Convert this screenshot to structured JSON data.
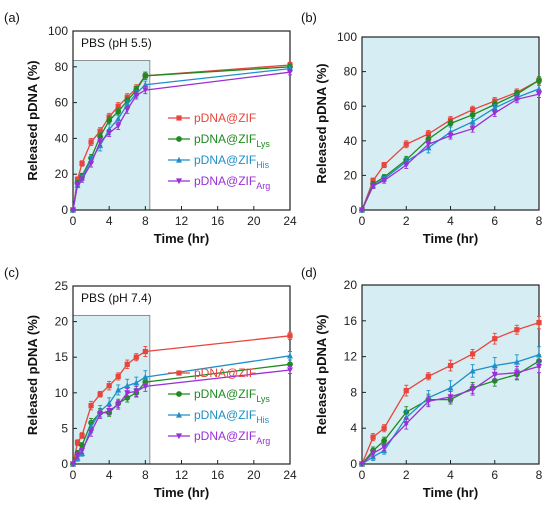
{
  "colors": {
    "ZIF": "#e8453c",
    "Lys": "#1f8a1f",
    "His": "#1f8fc8",
    "Arg": "#9a2fd6",
    "shade": "#d5edf3"
  },
  "chart_data": [
    {
      "id": "a",
      "panel_label": "(a)",
      "type": "line",
      "annotation": "PBS (pH 5.5)",
      "xlabel": "Time (hr)",
      "ylabel": "Released pDNA (%)",
      "xlim": [
        0,
        24
      ],
      "ylim": [
        0,
        100
      ],
      "xticks": [
        0,
        4,
        8,
        12,
        16,
        20,
        24
      ],
      "yticks": [
        0,
        20,
        40,
        60,
        80,
        100
      ],
      "shaded_x": [
        0,
        8.5
      ],
      "shade_full": false,
      "legend": "right",
      "series": [
        {
          "name": "pDNA@ZIF",
          "base": "pDNA@ZIF",
          "sub": "",
          "color_key": "ZIF",
          "marker": "square",
          "x": [
            0,
            0.5,
            1,
            2,
            3,
            4,
            5,
            6,
            7,
            8,
            24
          ],
          "y": [
            0,
            17,
            26,
            38,
            44,
            52,
            58,
            63,
            68,
            75,
            81
          ],
          "err": [
            0,
            1.5,
            1.5,
            2,
            2,
            2,
            2,
            2,
            2,
            2,
            1.5
          ]
        },
        {
          "name": "pDNA@ZIFLys",
          "base": "pDNA@ZIF",
          "sub": "Lys",
          "color_key": "Lys",
          "marker": "circle",
          "x": [
            0,
            0.5,
            1,
            2,
            3,
            4,
            5,
            6,
            7,
            8,
            24
          ],
          "y": [
            0,
            15,
            19,
            29,
            41,
            50,
            55,
            61,
            67,
            75,
            80
          ],
          "err": [
            0,
            1.5,
            1.5,
            2,
            2,
            2,
            2,
            2,
            2,
            2,
            1.5
          ]
        },
        {
          "name": "pDNA@ZIFHis",
          "base": "pDNA@ZIF",
          "sub": "His",
          "color_key": "His",
          "marker": "triangle",
          "x": [
            0,
            0.5,
            1,
            2,
            3,
            4,
            5,
            6,
            7,
            8,
            24
          ],
          "y": [
            0,
            14,
            18,
            28,
            36,
            45,
            51,
            59,
            65,
            70,
            79
          ],
          "err": [
            0,
            1.5,
            1.5,
            2,
            3,
            3,
            2,
            2,
            2,
            2,
            1.5
          ]
        },
        {
          "name": "pDNA@ZIFArg",
          "base": "pDNA@ZIF",
          "sub": "Arg",
          "color_key": "Arg",
          "marker": "invtriangle",
          "x": [
            0,
            0.5,
            1,
            2,
            3,
            4,
            5,
            6,
            7,
            8,
            24
          ],
          "y": [
            0,
            14,
            17,
            26,
            38,
            43,
            47,
            56,
            64,
            67,
            77
          ],
          "err": [
            0,
            1.5,
            1.5,
            2,
            2,
            2,
            2,
            2,
            2,
            2,
            1.5
          ]
        }
      ]
    },
    {
      "id": "b",
      "panel_label": "(b)",
      "type": "line",
      "annotation": "",
      "xlabel": "Time (hr)",
      "ylabel": "Released pDNA (%)",
      "xlim": [
        0,
        8
      ],
      "ylim": [
        0,
        100
      ],
      "xticks": [
        0,
        2,
        4,
        6,
        8
      ],
      "yticks": [
        0,
        20,
        40,
        60,
        80,
        100
      ],
      "shaded_x": [
        0,
        8
      ],
      "shade_full": true,
      "legend": "none",
      "series": [
        {
          "name": "pDNA@ZIF",
          "color_key": "ZIF",
          "marker": "square",
          "x": [
            0,
            0.5,
            1,
            2,
            3,
            4,
            5,
            6,
            7,
            8
          ],
          "y": [
            0,
            17,
            26,
            38,
            44,
            52,
            58,
            63,
            68,
            75
          ],
          "err": [
            0,
            1.5,
            1.5,
            2,
            2,
            2,
            2,
            2,
            2,
            2
          ]
        },
        {
          "name": "pDNA@ZIFLys",
          "color_key": "Lys",
          "marker": "circle",
          "x": [
            0,
            0.5,
            1,
            2,
            3,
            4,
            5,
            6,
            7,
            8
          ],
          "y": [
            0,
            15,
            19,
            29,
            41,
            50,
            55,
            61,
            67,
            75
          ],
          "err": [
            0,
            1.5,
            1.5,
            2,
            2,
            2,
            2,
            2,
            2,
            2
          ]
        },
        {
          "name": "pDNA@ZIFHis",
          "color_key": "His",
          "marker": "triangle",
          "x": [
            0,
            0.5,
            1,
            2,
            3,
            4,
            5,
            6,
            7,
            8
          ],
          "y": [
            0,
            14,
            18,
            28,
            36,
            45,
            51,
            59,
            65,
            70
          ],
          "err": [
            0,
            1.5,
            1.5,
            2,
            3,
            3,
            2,
            2,
            2,
            2
          ]
        },
        {
          "name": "pDNA@ZIFArg",
          "color_key": "Arg",
          "marker": "invtriangle",
          "x": [
            0,
            0.5,
            1,
            2,
            3,
            4,
            5,
            6,
            7,
            8
          ],
          "y": [
            0,
            14,
            17,
            26,
            38,
            43,
            47,
            56,
            64,
            67
          ],
          "err": [
            0,
            1.5,
            1.5,
            2,
            2,
            2,
            2,
            2,
            2,
            2
          ]
        }
      ]
    },
    {
      "id": "c",
      "panel_label": "(c)",
      "type": "line",
      "annotation": "PBS (pH 7.4)",
      "xlabel": "Time (hr)",
      "ylabel": "Released pDNA (%)",
      "xlim": [
        0,
        24
      ],
      "ylim": [
        0,
        25
      ],
      "xticks": [
        0,
        4,
        8,
        12,
        16,
        20,
        24
      ],
      "yticks": [
        0,
        5,
        10,
        15,
        20,
        25
      ],
      "shaded_x": [
        0,
        8.5
      ],
      "shade_full": false,
      "legend": "right",
      "series": [
        {
          "name": "pDNA@ZIF",
          "base": "pDNA@ZIF",
          "sub": "",
          "color_key": "ZIF",
          "marker": "square",
          "x": [
            0,
            0.5,
            1,
            2,
            3,
            4,
            5,
            6,
            7,
            8,
            24
          ],
          "y": [
            0,
            3,
            4,
            8.2,
            9.8,
            11,
            12.3,
            14,
            15,
            15.8,
            18
          ],
          "err": [
            0,
            0.4,
            0.4,
            0.6,
            0.4,
            0.6,
            0.5,
            0.6,
            0.5,
            0.7,
            0.5
          ]
        },
        {
          "name": "pDNA@ZIFLys",
          "base": "pDNA@ZIF",
          "sub": "Lys",
          "color_key": "Lys",
          "marker": "circle",
          "x": [
            0,
            0.5,
            1,
            2,
            3,
            4,
            5,
            6,
            7,
            8,
            24
          ],
          "y": [
            0,
            1.5,
            2.6,
            5.8,
            7.2,
            7.2,
            8.5,
            9.3,
            10,
            11.5,
            14
          ],
          "err": [
            0,
            0.4,
            0.4,
            0.6,
            0.6,
            0.5,
            0.6,
            0.6,
            0.6,
            0.7,
            0.6
          ]
        },
        {
          "name": "pDNA@ZIFHis",
          "base": "pDNA@ZIF",
          "sub": "His",
          "color_key": "His",
          "marker": "triangle",
          "x": [
            0,
            0.5,
            1,
            2,
            3,
            4,
            5,
            6,
            7,
            8,
            24
          ],
          "y": [
            0,
            0.8,
            1.5,
            5.2,
            7.4,
            8.5,
            10.4,
            11,
            11.4,
            12.2,
            15.2
          ],
          "err": [
            0,
            0.4,
            0.4,
            0.8,
            0.8,
            0.8,
            0.7,
            0.9,
            0.8,
            0.9,
            0.6
          ]
        },
        {
          "name": "pDNA@ZIFArg",
          "base": "pDNA@ZIF",
          "sub": "Arg",
          "color_key": "Arg",
          "marker": "invtriangle",
          "x": [
            0,
            0.5,
            1,
            2,
            3,
            4,
            5,
            6,
            7,
            8,
            24
          ],
          "y": [
            0,
            1.2,
            1.9,
            4.5,
            7,
            7.5,
            8.3,
            10,
            10.2,
            10.9,
            13.2
          ],
          "err": [
            0,
            0.4,
            0.4,
            0.6,
            0.6,
            0.6,
            0.6,
            0.6,
            0.7,
            0.7,
            0.5
          ]
        }
      ]
    },
    {
      "id": "d",
      "panel_label": "(d)",
      "type": "line",
      "annotation": "",
      "xlabel": "Time (hr)",
      "ylabel": "Released pDNA (%)",
      "xlim": [
        0,
        8
      ],
      "ylim": [
        0,
        20
      ],
      "xticks": [
        0,
        2,
        4,
        6,
        8
      ],
      "yticks": [
        0,
        4,
        8,
        12,
        16,
        20
      ],
      "shaded_x": [
        0,
        8
      ],
      "shade_full": true,
      "legend": "none",
      "series": [
        {
          "name": "pDNA@ZIF",
          "color_key": "ZIF",
          "marker": "square",
          "x": [
            0,
            0.5,
            1,
            2,
            3,
            4,
            5,
            6,
            7,
            8
          ],
          "y": [
            0,
            3,
            4,
            8.2,
            9.8,
            11,
            12.3,
            14,
            15,
            15.8
          ],
          "err": [
            0,
            0.4,
            0.4,
            0.6,
            0.4,
            0.6,
            0.5,
            0.6,
            0.5,
            0.7
          ]
        },
        {
          "name": "pDNA@ZIFLys",
          "color_key": "Lys",
          "marker": "circle",
          "x": [
            0,
            0.5,
            1,
            2,
            3,
            4,
            5,
            6,
            7,
            8
          ],
          "y": [
            0,
            1.5,
            2.6,
            5.8,
            7.2,
            7.2,
            8.5,
            9.3,
            10,
            11.5
          ],
          "err": [
            0,
            0.4,
            0.4,
            0.6,
            0.6,
            0.5,
            0.6,
            0.6,
            0.6,
            0.7
          ]
        },
        {
          "name": "pDNA@ZIFHis",
          "color_key": "His",
          "marker": "triangle",
          "x": [
            0,
            0.5,
            1,
            2,
            3,
            4,
            5,
            6,
            7,
            8
          ],
          "y": [
            0,
            0.8,
            1.5,
            5.2,
            7.4,
            8.5,
            10.4,
            11,
            11.4,
            12.2
          ],
          "err": [
            0,
            0.4,
            0.4,
            0.8,
            0.8,
            0.8,
            0.7,
            0.9,
            0.8,
            0.9
          ]
        },
        {
          "name": "pDNA@ZIFArg",
          "color_key": "Arg",
          "marker": "invtriangle",
          "x": [
            0,
            0.5,
            1,
            2,
            3,
            4,
            5,
            6,
            7,
            8
          ],
          "y": [
            0,
            1.2,
            1.9,
            4.5,
            7,
            7.5,
            8.3,
            10,
            10.2,
            10.9
          ],
          "err": [
            0,
            0.4,
            0.4,
            0.6,
            0.6,
            0.6,
            0.6,
            0.6,
            0.7,
            0.7
          ]
        }
      ]
    }
  ]
}
